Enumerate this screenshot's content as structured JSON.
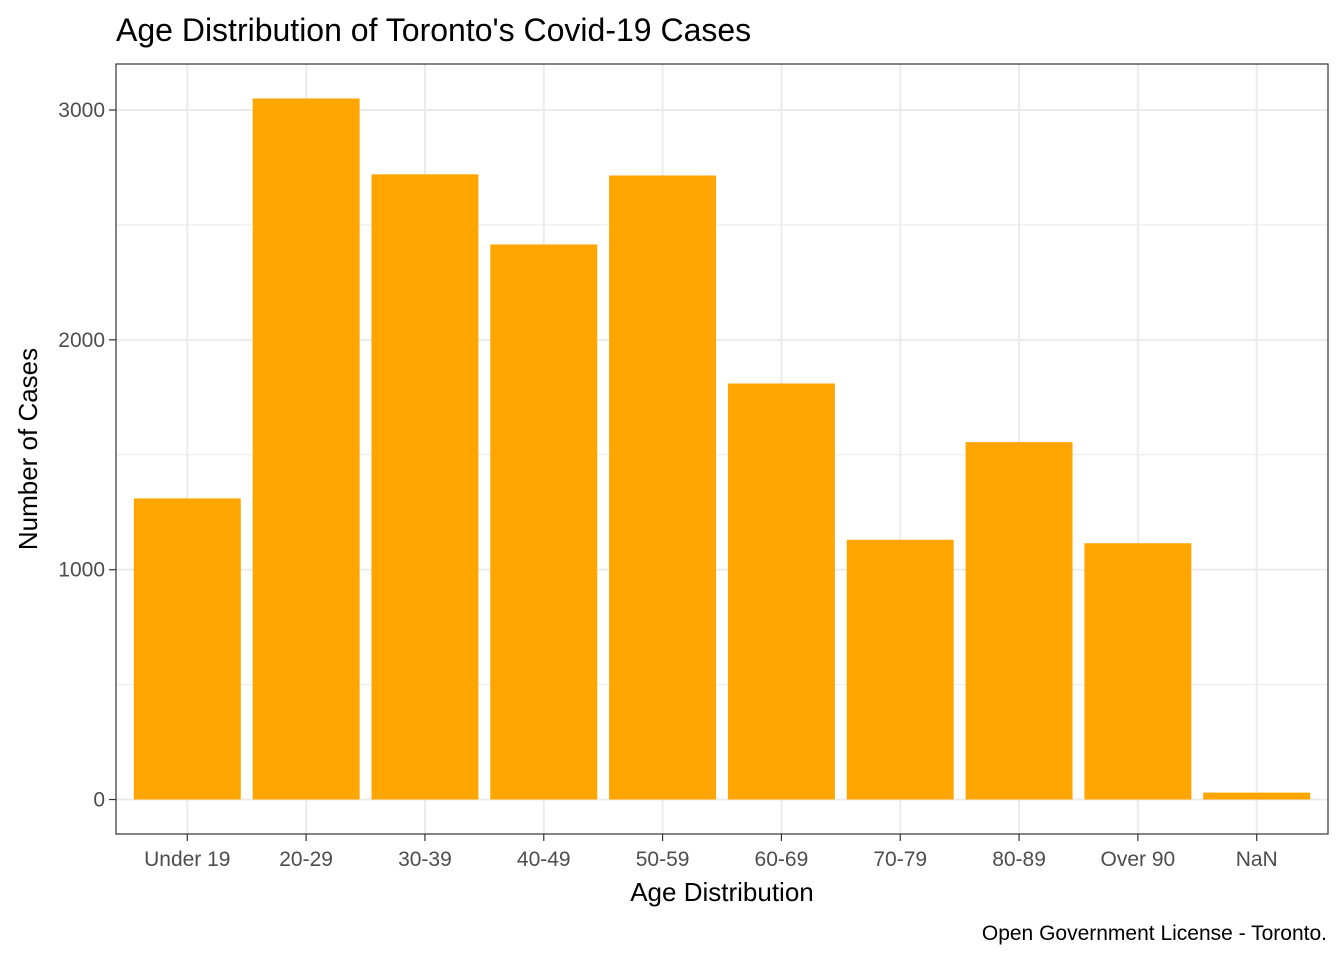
{
  "chart_data": {
    "type": "bar",
    "title": "Age Distribution of Toronto's Covid-19 Cases",
    "xlabel": "Age Distribution",
    "ylabel": "Number of Cases",
    "caption": "Open Government License - Toronto.",
    "categories": [
      "Under 19",
      "20-29",
      "30-39",
      "40-49",
      "50-59",
      "60-69",
      "70-79",
      "80-89",
      "Over 90",
      "NaN"
    ],
    "values": [
      1310,
      3050,
      2720,
      2415,
      2715,
      1810,
      1130,
      1555,
      1115,
      30
    ],
    "ylim": [
      -150,
      3200
    ],
    "yticks": [
      0,
      1000,
      2000,
      3000
    ],
    "grid": true,
    "legend": "none",
    "bar_color": "#FFA500"
  }
}
